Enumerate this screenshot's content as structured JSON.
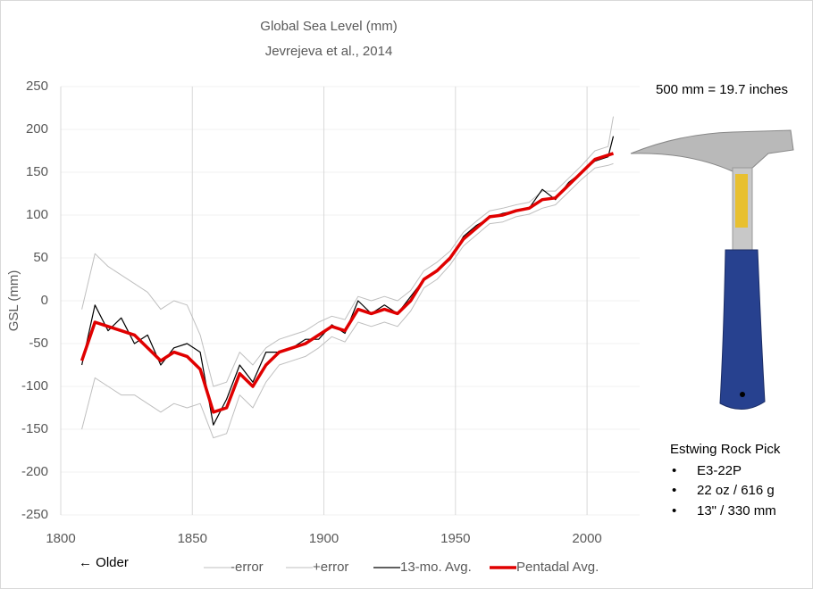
{
  "chart_data": {
    "type": "line",
    "title": "Global Sea Level (mm)",
    "subtitle": "Jevrejeva et al., 2014",
    "ylabel": "GSL (mm)",
    "annotations": [
      "500 mm = 19.7 inches",
      "Estwing Rock Pick",
      "E3-22P",
      "22 oz / 616 g",
      "13\" / 330 mm",
      "← Older"
    ],
    "x": [
      1808,
      1813,
      1818,
      1823,
      1828,
      1833,
      1838,
      1843,
      1848,
      1853,
      1858,
      1863,
      1868,
      1873,
      1878,
      1883,
      1888,
      1893,
      1898,
      1903,
      1908,
      1913,
      1918,
      1923,
      1928,
      1933,
      1938,
      1943,
      1948,
      1953,
      1958,
      1963,
      1968,
      1973,
      1978,
      1983,
      1988,
      1993,
      1998,
      2003,
      2008,
      2010
    ],
    "series": [
      {
        "name": "-error",
        "color": "#bfbfbf",
        "width": 1,
        "values": [
          -150,
          -90,
          -100,
          -110,
          -110,
          -120,
          -130,
          -120,
          -125,
          -120,
          -160,
          -155,
          -110,
          -125,
          -95,
          -75,
          -70,
          -65,
          -55,
          -42,
          -48,
          -25,
          -30,
          -25,
          -30,
          -12,
          15,
          25,
          42,
          64,
          77,
          90,
          92,
          98,
          101,
          108,
          112,
          127,
          142,
          155,
          158,
          160
        ]
      },
      {
        "name": "+error",
        "color": "#bfbfbf",
        "width": 1,
        "values": [
          -10,
          55,
          40,
          30,
          20,
          10,
          -10,
          0,
          -5,
          -40,
          -100,
          -95,
          -60,
          -75,
          -55,
          -45,
          -40,
          -35,
          -25,
          -18,
          -22,
          5,
          0,
          5,
          0,
          12,
          35,
          45,
          58,
          80,
          93,
          105,
          108,
          112,
          115,
          128,
          128,
          143,
          158,
          175,
          180,
          215
        ]
      },
      {
        "name": "13-mo. Avg.",
        "color": "#000000",
        "width": 1.2,
        "values": [
          -75,
          -5,
          -35,
          -20,
          -50,
          -40,
          -75,
          -55,
          -50,
          -60,
          -145,
          -115,
          -75,
          -95,
          -60,
          -60,
          -55,
          -45,
          -45,
          -28,
          -38,
          0,
          -15,
          -5,
          -15,
          5,
          25,
          35,
          48,
          75,
          88,
          97,
          102,
          105,
          108,
          130,
          118,
          138,
          150,
          163,
          168,
          192
        ]
      },
      {
        "name": "Pentadal Avg.",
        "color": "#e00000",
        "width": 3.5,
        "values": [
          -70,
          -25,
          -30,
          -35,
          -40,
          -55,
          -70,
          -60,
          -65,
          -80,
          -130,
          -125,
          -85,
          -100,
          -75,
          -60,
          -55,
          -50,
          -40,
          -30,
          -35,
          -10,
          -15,
          -10,
          -15,
          0,
          25,
          35,
          50,
          72,
          85,
          98,
          100,
          105,
          108,
          118,
          120,
          135,
          150,
          165,
          170,
          172
        ]
      }
    ],
    "xlim": [
      1800,
      2020
    ],
    "xticks": [
      1800,
      1850,
      1900,
      1950,
      2000
    ],
    "ylim": [
      -250,
      250
    ],
    "yticks": [
      -250,
      -200,
      -150,
      -100,
      -50,
      0,
      50,
      100,
      150,
      200,
      250
    ],
    "grid": true
  }
}
